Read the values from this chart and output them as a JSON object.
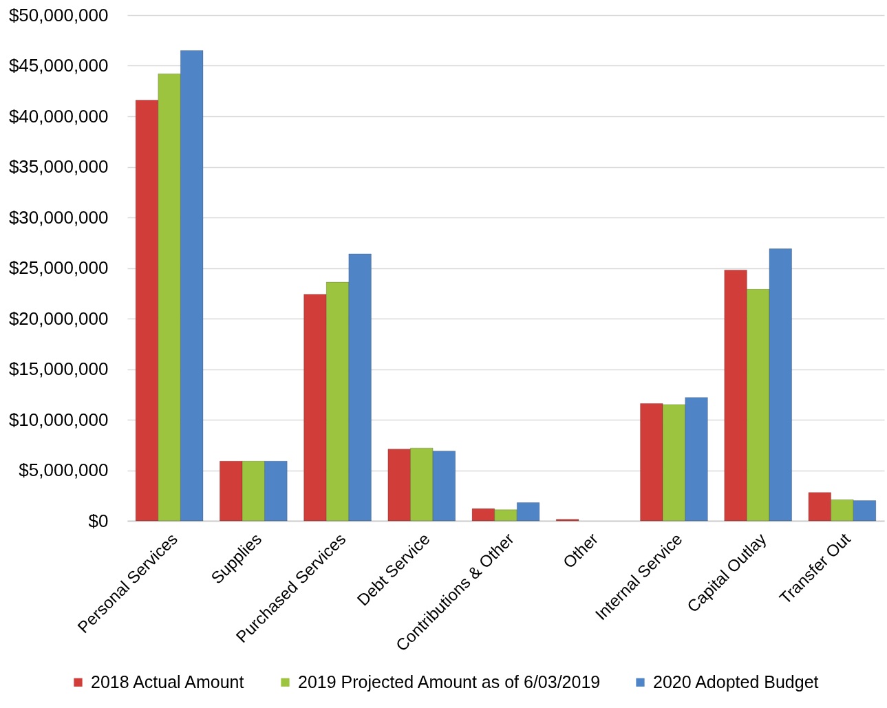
{
  "chart_data": {
    "type": "bar",
    "categories": [
      "Personal Services",
      "Supplies",
      "Purchased Services",
      "Debt Service",
      "Contributions & Other",
      "Other",
      "Internal Service",
      "Capital Outlay",
      "Transfer Out"
    ],
    "series": [
      {
        "name": "2018 Actual Amount",
        "color": "#d13d39",
        "values": [
          41600000,
          5900000,
          22400000,
          7100000,
          1200000,
          150000,
          11600000,
          24800000,
          2800000
        ]
      },
      {
        "name": "2019 Projected Amount as of 6/03/2019",
        "color": "#9cc43f",
        "values": [
          44200000,
          5900000,
          23600000,
          7200000,
          1100000,
          null,
          11500000,
          22900000,
          2100000
        ]
      },
      {
        "name": "2020 Adopted Budget",
        "color": "#4f85c6",
        "values": [
          46500000,
          5900000,
          26400000,
          6900000,
          1800000,
          null,
          12200000,
          26900000,
          2000000
        ]
      }
    ],
    "ylim": [
      0,
      50000000
    ],
    "yticks": [
      {
        "value": 0,
        "label": "$0"
      },
      {
        "value": 5000000,
        "label": "$5,000,000"
      },
      {
        "value": 10000000,
        "label": "$10,000,000"
      },
      {
        "value": 15000000,
        "label": "$15,000,000"
      },
      {
        "value": 20000000,
        "label": "$20,000,000"
      },
      {
        "value": 25000000,
        "label": "$25,000,000"
      },
      {
        "value": 30000000,
        "label": "$30,000,000"
      },
      {
        "value": 35000000,
        "label": "$35,000,000"
      },
      {
        "value": 40000000,
        "label": "$40,000,000"
      },
      {
        "value": 45000000,
        "label": "$45,000,000"
      },
      {
        "value": 50000000,
        "label": "$50,000,000"
      }
    ],
    "grid": "y",
    "legend": "bottom"
  }
}
